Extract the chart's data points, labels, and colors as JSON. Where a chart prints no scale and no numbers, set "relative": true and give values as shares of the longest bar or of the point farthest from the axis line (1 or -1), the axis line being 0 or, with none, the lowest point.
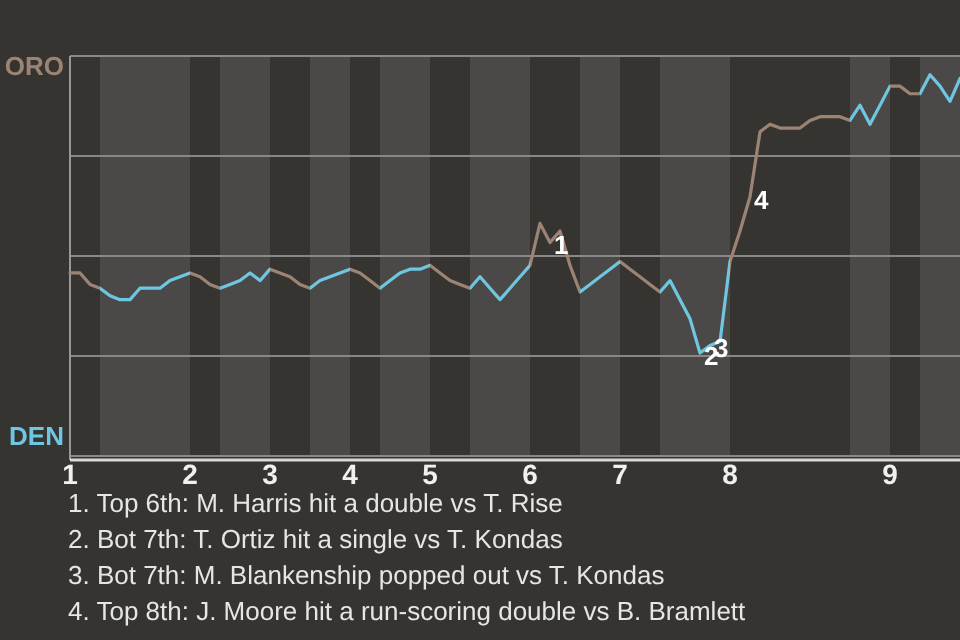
{
  "chart_data": {
    "type": "line",
    "relative": true,
    "categories": [
      "1",
      null,
      null,
      null,
      null,
      null,
      null,
      null,
      null,
      null,
      null,
      null,
      "2",
      null,
      null,
      null,
      null,
      null,
      null,
      null,
      "3",
      null,
      null,
      null,
      null,
      null,
      null,
      null,
      "4",
      null,
      null,
      null,
      null,
      null,
      null,
      null,
      "5",
      null,
      null,
      null,
      null,
      null,
      null,
      null,
      null,
      null,
      "6",
      null,
      null,
      null,
      null,
      null,
      null,
      null,
      null,
      "7",
      null,
      null,
      null,
      null,
      null,
      null,
      null,
      null,
      null,
      null,
      "8",
      null,
      null,
      null,
      null,
      null,
      null,
      null,
      null,
      null,
      null,
      null,
      null,
      null,
      null,
      null,
      "9",
      null,
      null,
      null,
      null,
      null,
      null,
      null
    ],
    "series": [
      {
        "values": [
          0.48,
          0.48,
          0.45,
          0.44,
          0.42,
          0.41,
          0.41,
          0.44,
          0.44,
          0.44,
          0.46,
          0.47,
          0.48,
          0.47,
          0.45,
          0.44,
          0.45,
          0.46,
          0.48,
          0.46,
          0.49,
          0.48,
          0.47,
          0.45,
          0.44,
          0.46,
          0.47,
          0.48,
          0.49,
          0.48,
          0.46,
          0.44,
          0.46,
          0.48,
          0.49,
          0.49,
          0.5,
          0.48,
          0.46,
          0.45,
          0.44,
          0.47,
          0.44,
          0.41,
          0.44,
          0.47,
          0.5,
          0.61,
          0.56,
          0.59,
          0.5,
          0.43,
          0.45,
          0.47,
          0.49,
          0.51,
          0.49,
          0.47,
          0.45,
          0.43,
          0.46,
          0.41,
          0.36,
          0.27,
          0.29,
          0.3,
          0.51,
          0.59,
          0.68,
          0.85,
          0.87,
          0.86,
          0.86,
          0.86,
          0.88,
          0.89,
          0.89,
          0.89,
          0.88,
          0.92,
          0.87,
          0.92,
          0.97,
          0.97,
          0.95,
          0.95,
          1,
          0.97,
          0.93,
          0.99
        ],
        "colors": [
          "#9c8474",
          "#9c8474",
          "#9c8474",
          "#6ec6e0",
          "#6ec6e0",
          "#6ec6e0",
          "#6ec6e0",
          "#6ec6e0",
          "#6ec6e0",
          "#6ec6e0",
          "#6ec6e0",
          "#6ec6e0",
          "#9c8474",
          "#9c8474",
          "#9c8474",
          "#6ec6e0",
          "#6ec6e0",
          "#6ec6e0",
          "#6ec6e0",
          "#6ec6e0",
          "#9c8474",
          "#9c8474",
          "#9c8474",
          "#9c8474",
          "#6ec6e0",
          "#6ec6e0",
          "#6ec6e0",
          "#6ec6e0",
          "#9c8474",
          "#9c8474",
          "#9c8474",
          "#6ec6e0",
          "#6ec6e0",
          "#6ec6e0",
          "#6ec6e0",
          "#6ec6e0",
          "#9c8474",
          "#9c8474",
          "#9c8474",
          "#9c8474",
          "#6ec6e0",
          "#6ec6e0",
          "#6ec6e0",
          "#6ec6e0",
          "#6ec6e0",
          "#6ec6e0",
          "#9c8474",
          "#9c8474",
          "#9c8474",
          "#9c8474",
          "#9c8474",
          "#6ec6e0",
          "#6ec6e0",
          "#6ec6e0",
          "#6ec6e0",
          "#9c8474",
          "#9c8474",
          "#9c8474",
          "#9c8474",
          "#6ec6e0",
          "#6ec6e0",
          "#6ec6e0",
          "#6ec6e0",
          "#6ec6e0",
          "#6ec6e0",
          "#6ec6e0",
          "#9c8474",
          "#9c8474",
          "#9c8474",
          "#9c8474",
          "#9c8474",
          "#9c8474",
          "#9c8474",
          "#9c8474",
          "#9c8474",
          "#9c8474",
          "#9c8474",
          "#9c8474",
          "#6ec6e0",
          "#6ec6e0",
          "#6ec6e0",
          "#6ec6e0",
          "#9c8474",
          "#9c8474",
          "#9c8474",
          "#6ec6e0",
          "#6ec6e0",
          "#6ec6e0",
          "#6ec6e0",
          "#6ec6e0"
        ]
      }
    ],
    "grid": true,
    "annotations": [
      "ORO",
      "DEN",
      {
        "text": "1",
        "y": 0.56
      },
      {
        "text": "2",
        "y": 0.27
      },
      {
        "text": "3",
        "y": 0.29
      },
      {
        "text": "4",
        "y": 0.68
      },
      "1. Top 6th: M. Harris hit a double vs T. Rise",
      "2. Bot 7th: T. Ortiz hit a single vs T. Kondas",
      "3. Bot 7th: M. Blankenship popped out vs T. Kondas",
      "4. Top 8th: J. Moore hit a run-scoring double vs B. Bramlett"
    ],
    "marker": "none",
    "line_style": "solid"
  }
}
